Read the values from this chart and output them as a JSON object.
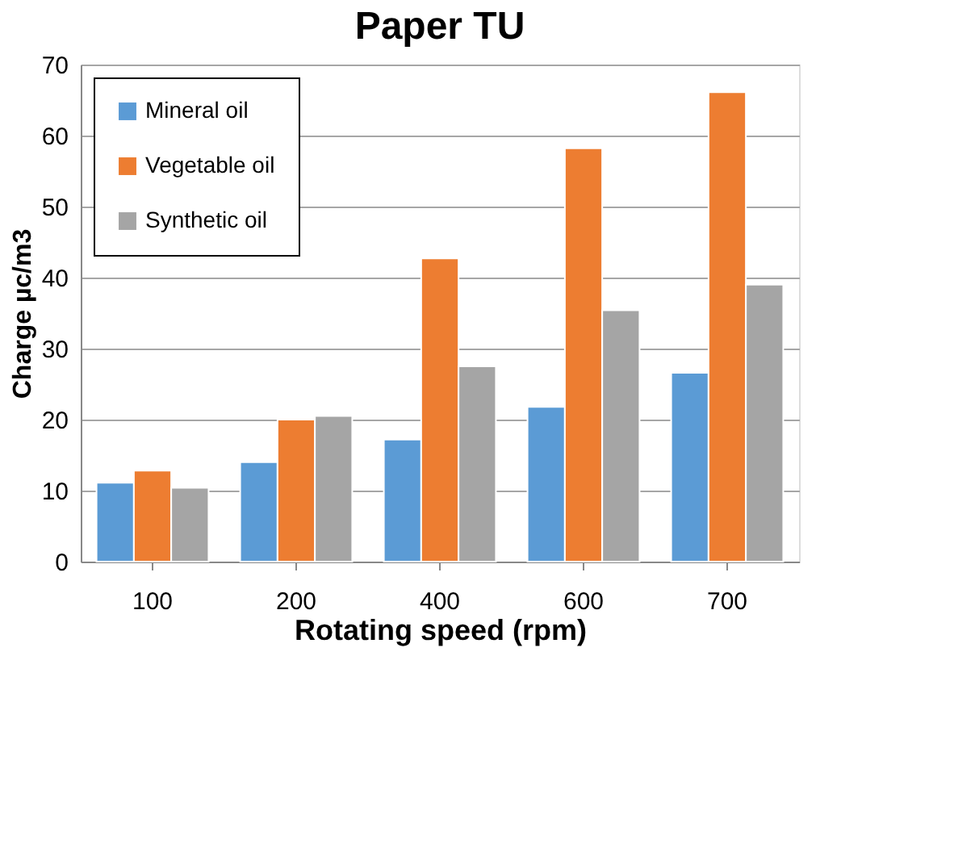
{
  "chart_data": {
    "type": "bar",
    "title": "Paper TU",
    "xlabel": "Rotating speed (rpm)",
    "ylabel": "Charge µc/m3",
    "categories": [
      "100",
      "200",
      "400",
      "600",
      "700"
    ],
    "series": [
      {
        "name": "Mineral oil",
        "color": "#5b9bd5",
        "values": [
          11.1,
          14.0,
          17.2,
          21.8,
          26.6
        ]
      },
      {
        "name": "Vegetable oil",
        "color": "#ed7d31",
        "values": [
          12.8,
          20.0,
          42.7,
          58.2,
          66.1
        ]
      },
      {
        "name": "Synthetic oil",
        "color": "#a5a5a5",
        "values": [
          10.4,
          20.5,
          27.5,
          35.4,
          39.0
        ]
      }
    ],
    "ylim": [
      0,
      70
    ],
    "yticks": [
      0,
      10,
      20,
      30,
      40,
      50,
      60,
      70
    ],
    "grid": "y",
    "legend": "top left"
  }
}
